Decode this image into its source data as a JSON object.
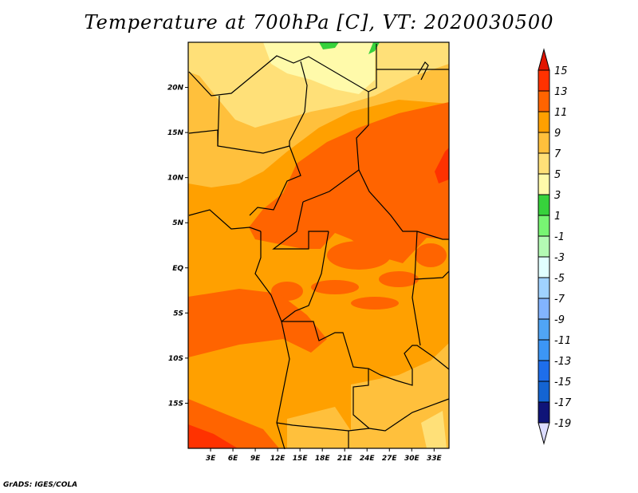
{
  "title": "Temperature at 700hPa [C], VT: 2020030500",
  "credit": "GrADS: IGES/COLA",
  "map": {
    "lon_range": [
      0,
      35
    ],
    "lat_range": [
      -20,
      25
    ],
    "lat_labels": [
      {
        "value": 20,
        "label": "20N"
      },
      {
        "value": 15,
        "label": "15N"
      },
      {
        "value": 10,
        "label": "10N"
      },
      {
        "value": 5,
        "label": "5N"
      },
      {
        "value": 0,
        "label": "EQ"
      },
      {
        "value": -5,
        "label": "5S"
      },
      {
        "value": -10,
        "label": "10S"
      },
      {
        "value": -15,
        "label": "15S"
      }
    ],
    "lon_labels": [
      {
        "value": 3,
        "label": "3E"
      },
      {
        "value": 6,
        "label": "6E"
      },
      {
        "value": 9,
        "label": "9E"
      },
      {
        "value": 12,
        "label": "12E"
      },
      {
        "value": 15,
        "label": "15E"
      },
      {
        "value": 18,
        "label": "18E"
      },
      {
        "value": 21,
        "label": "21E"
      },
      {
        "value": 24,
        "label": "24E"
      },
      {
        "value": 27,
        "label": "27E"
      },
      {
        "value": 30,
        "label": "30E"
      },
      {
        "value": 33,
        "label": "33E"
      }
    ]
  },
  "colorbar": {
    "labels": [
      "15",
      "13",
      "11",
      "9",
      "7",
      "5",
      "3",
      "1",
      "-1",
      "-3",
      "-5",
      "-7",
      "-9",
      "-11",
      "-13",
      "-15",
      "-17",
      "-19"
    ],
    "colors": [
      "#ff3200",
      "#ff6400",
      "#ffa000",
      "#ffc03c",
      "#ffe078",
      "#fffaaa",
      "#37d23c",
      "#78f573",
      "#b4fab4",
      "#e1ffff",
      "#a0d2ff",
      "#82b4ff",
      "#50a5f5",
      "#3c96f5",
      "#1e6eeb",
      "#1464d2",
      "#0f1478"
    ],
    "top_arrow_color": "#e11400",
    "bottom_arrow_color": "#dcdcff"
  }
}
